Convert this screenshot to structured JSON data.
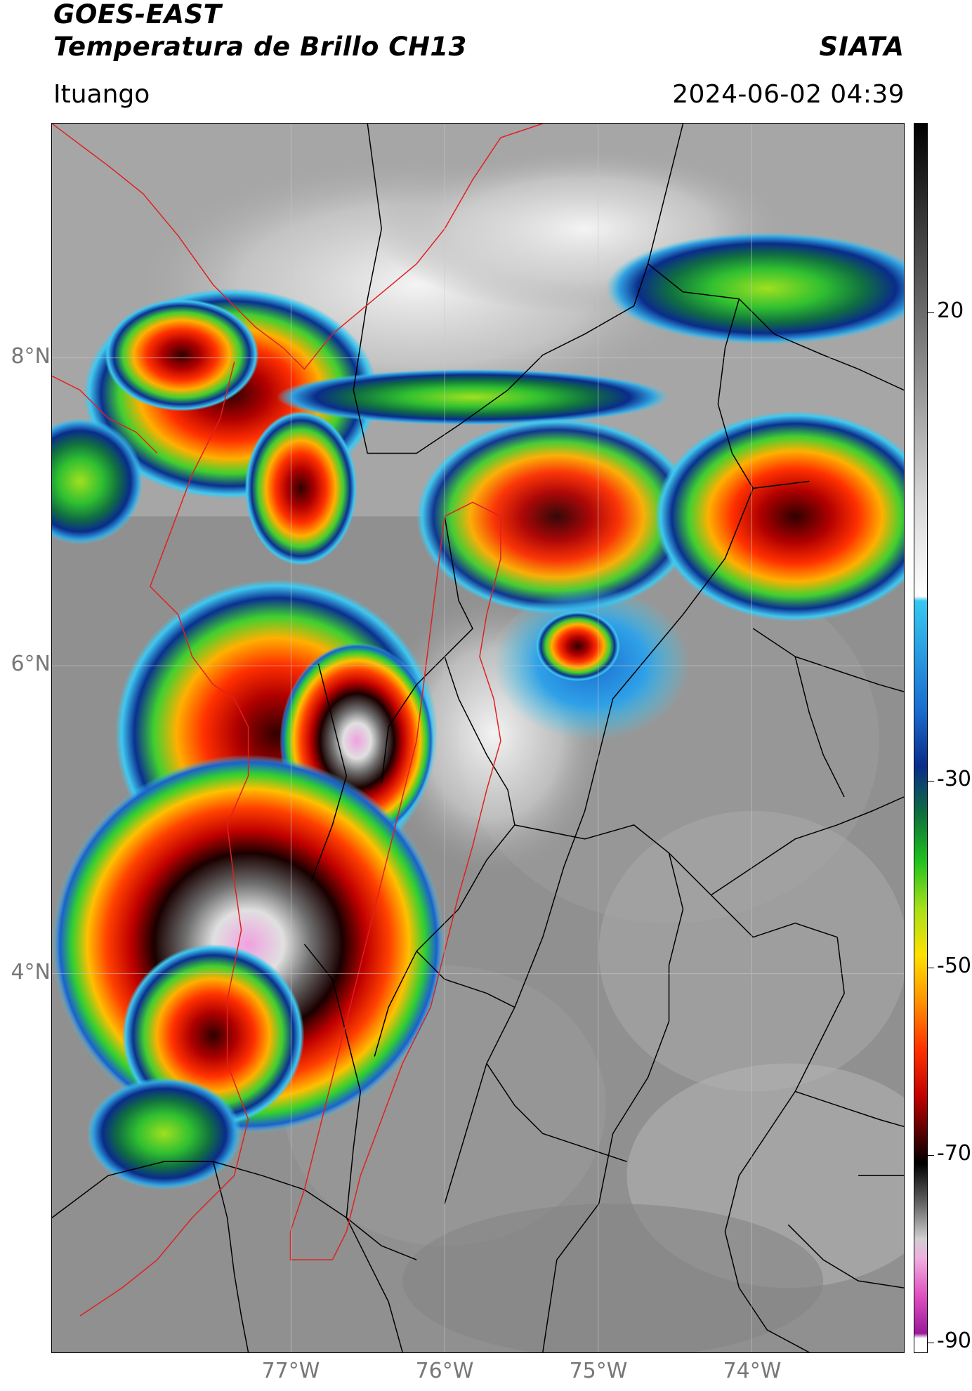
{
  "header": {
    "satellite": "GOES-EAST",
    "product": "Temperatura de Brillo CH13",
    "brand": "SIATA",
    "region": "Ituango",
    "timestamp": "2024-06-02 04:39"
  },
  "map": {
    "lat_labels": [
      "8°N",
      "6°N",
      "4°N"
    ],
    "lon_labels": [
      "77°W",
      "76°W",
      "75°W",
      "74°W"
    ],
    "extent": {
      "lon_min": -78.55,
      "lon_max": -73.0,
      "lat_min": 2.0,
      "lat_max": 9.55
    },
    "gridlines": true,
    "colors": {
      "background": "#8f8f8f",
      "boundary_lines": "#000000",
      "red_boundaries": "#e02020",
      "grid": "#b0b0b0"
    }
  },
  "colorbar": {
    "labels": [
      "20",
      "-30",
      "-50",
      "-70",
      "-90"
    ],
    "range": [
      -90,
      40
    ],
    "stops": [
      {
        "value": 40,
        "color": "#000000"
      },
      {
        "value": 20,
        "color": "#6b6b6b"
      },
      {
        "value": 0,
        "color": "#d8d8d8"
      },
      {
        "value": -10,
        "color": "#ffffff"
      },
      {
        "value": -10.5,
        "color": "#36c8f0"
      },
      {
        "value": -22,
        "color": "#1a6dd0"
      },
      {
        "value": -28,
        "color": "#0a2c8a"
      },
      {
        "value": -33,
        "color": "#0f6e3e"
      },
      {
        "value": -38,
        "color": "#1fc21f"
      },
      {
        "value": -43,
        "color": "#a7e01a"
      },
      {
        "value": -48,
        "color": "#ffe000"
      },
      {
        "value": -53,
        "color": "#ff9000"
      },
      {
        "value": -58,
        "color": "#ff3000"
      },
      {
        "value": -63,
        "color": "#c00000"
      },
      {
        "value": -67,
        "color": "#500000"
      },
      {
        "value": -70,
        "color": "#000000"
      },
      {
        "value": -74,
        "color": "#5e5e5e"
      },
      {
        "value": -78,
        "color": "#cfcfcf"
      },
      {
        "value": -80,
        "color": "#f0b0e0"
      },
      {
        "value": -84,
        "color": "#e050c0"
      },
      {
        "value": -88,
        "color": "#9a1a9a"
      },
      {
        "value": -88.5,
        "color": "#ffffff"
      },
      {
        "value": -90,
        "color": "#ffffff"
      }
    ]
  }
}
